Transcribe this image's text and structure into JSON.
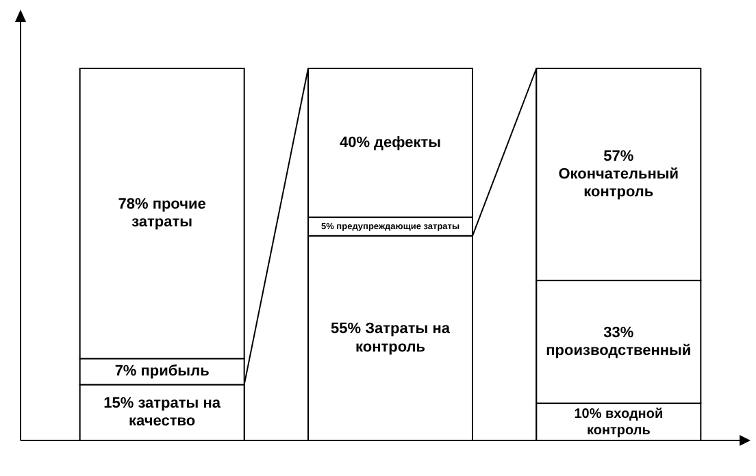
{
  "chart_data": {
    "type": "bar",
    "stacked": true,
    "categories": [
      null,
      null,
      null
    ],
    "series": [
      {
        "color": "#ffffff",
        "values": [
          15,
          55,
          10
        ],
        "value_labels": [
          "15% затраты на качество",
          "55% Затраты на контроль",
          "10% входной контроль"
        ]
      },
      {
        "color": "#ffffff",
        "values": [
          7,
          5,
          33
        ],
        "value_labels": [
          "7% прибыль",
          "5% предупреждающие затраты",
          "33% производственный"
        ]
      },
      {
        "color": "#ffffff",
        "values": [
          78,
          40,
          57
        ],
        "value_labels": [
          "78% прочие затраты",
          "40% дефекты",
          "57% Окончательный контроль"
        ]
      }
    ]
  }
}
